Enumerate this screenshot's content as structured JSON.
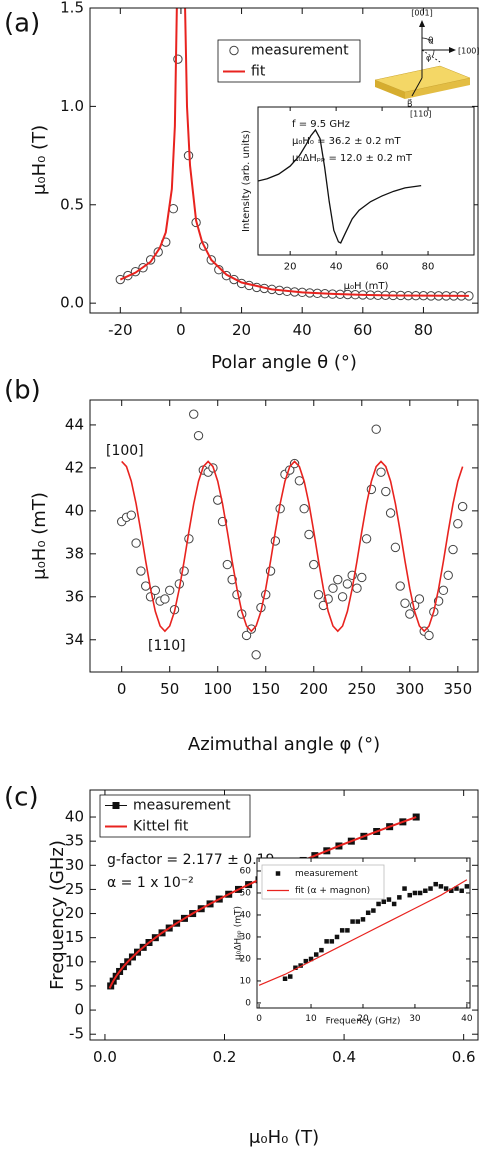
{
  "chart_data": [
    {
      "type": "scatter",
      "panel_label": "(a)",
      "x_label": "Polar angle θ (°)",
      "y_label": "μ₀H₀ (T)",
      "xlim": [
        -30,
        98
      ],
      "ylim": [
        -0.05,
        1.5
      ],
      "xticks": [
        -20,
        0,
        20,
        40,
        60,
        80
      ],
      "yticks": [
        {
          "value": 0,
          "label": "0.0"
        },
        0.5,
        {
          "value": 1,
          "label": "1.0"
        },
        1.5
      ],
      "diagram_labels": [
        "[001]",
        "θ",
        "φ",
        "[100]",
        "B⃗",
        "[110]"
      ],
      "series": [
        {
          "name": "measurement",
          "color": "#444444",
          "marker": "circle-open",
          "line": false,
          "x": [
            -20,
            -17.5,
            -15,
            -12.5,
            -10,
            -7.5,
            -5,
            -2.5,
            -1,
            2.5,
            5,
            7.5,
            10,
            12.5,
            15,
            17.5,
            20,
            22.5,
            25,
            27.5,
            30,
            32.5,
            35,
            37.5,
            40,
            42.5,
            45,
            47.5,
            50,
            52.5,
            55,
            57.5,
            60,
            62.5,
            65,
            67.5,
            70,
            72.5,
            75,
            77.5,
            80,
            82.5,
            85,
            87.5,
            90,
            92.5,
            95
          ],
          "values": [
            0.12,
            0.14,
            0.16,
            0.18,
            0.22,
            0.26,
            0.31,
            0.48,
            1.24,
            0.75,
            0.41,
            0.29,
            0.22,
            0.17,
            0.14,
            0.12,
            0.1,
            0.09,
            0.08,
            0.075,
            0.07,
            0.065,
            0.06,
            0.057,
            0.055,
            0.052,
            0.05,
            0.048,
            0.046,
            0.045,
            0.044,
            0.043,
            0.042,
            0.041,
            0.04,
            0.04,
            0.039,
            0.039,
            0.038,
            0.038,
            0.038,
            0.037,
            0.037,
            0.037,
            0.037,
            0.037,
            0.037
          ]
        },
        {
          "name": "fit",
          "color": "#e8231f",
          "marker": null,
          "line": true,
          "x": [
            -20,
            -15,
            -10,
            -7,
            -5,
            -3,
            -2,
            -1.3,
            1.3,
            2,
            3,
            5,
            7,
            10,
            15,
            20,
            30,
            40,
            50,
            60,
            70,
            80,
            95
          ],
          "values": [
            0.12,
            0.155,
            0.21,
            0.28,
            0.36,
            0.58,
            0.9,
            1.55,
            1.55,
            1.0,
            0.7,
            0.42,
            0.31,
            0.22,
            0.145,
            0.105,
            0.07,
            0.055,
            0.047,
            0.042,
            0.039,
            0.038,
            0.037
          ]
        }
      ]
    },
    {
      "type": "line",
      "x_label": "μ₀H (mT)",
      "y_label": "Intensity (arb. units)",
      "xlim": [
        6,
        100
      ],
      "ylim": [
        -1.23,
        1.35
      ],
      "xticks": [
        20,
        40,
        60,
        80
      ],
      "annotations": [
        "f = 9.5 GHz",
        "μ₀H₀ = 36.2 ± 0.2 mT",
        "μ₀ΔHₚₚ = 12.0 ± 0.2 mT"
      ],
      "series": [
        {
          "color": "#111111",
          "marker": null,
          "line": true,
          "x": [
            5,
            10,
            15,
            20,
            24,
            27,
            29,
            31,
            33,
            35,
            37,
            39,
            41,
            42,
            44,
            47,
            50,
            55,
            60,
            65,
            70,
            77
          ],
          "values": [
            0.05,
            0.1,
            0.18,
            0.32,
            0.5,
            0.7,
            0.85,
            0.95,
            0.8,
            0.3,
            -0.3,
            -0.8,
            -1.0,
            -1.02,
            -0.85,
            -0.6,
            -0.45,
            -0.3,
            -0.2,
            -0.12,
            -0.06,
            -0.02
          ]
        }
      ]
    },
    {
      "type": "scatter",
      "panel_label": "(b)",
      "x_label": "Azimuthal angle φ (°)",
      "y_label": "μ₀H₀ (mT)",
      "xlim": [
        -33,
        371
      ],
      "ylim": [
        32.5,
        45.16
      ],
      "xticks": [
        0,
        50,
        100,
        150,
        200,
        250,
        300,
        350
      ],
      "yticks": [
        34,
        36,
        38,
        40,
        42,
        44
      ],
      "annotations": [
        "[100]",
        "[110]"
      ],
      "series": [
        {
          "name": "measurement",
          "color": "#444444",
          "marker": "circle-open",
          "line": false,
          "x": [
            0,
            5,
            10,
            15,
            20,
            25,
            30,
            35,
            40,
            45,
            50,
            55,
            60,
            65,
            70,
            75,
            80,
            85,
            90,
            95,
            100,
            105,
            110,
            115,
            120,
            125,
            130,
            135,
            140,
            145,
            150,
            155,
            160,
            165,
            170,
            175,
            180,
            185,
            190,
            195,
            200,
            205,
            210,
            215,
            220,
            225,
            230,
            235,
            240,
            245,
            250,
            255,
            260,
            265,
            270,
            275,
            280,
            285,
            290,
            295,
            300,
            305,
            310,
            315,
            320,
            325,
            330,
            335,
            340,
            345,
            350,
            355
          ],
          "values": [
            39.5,
            39.7,
            39.8,
            38.5,
            37.2,
            36.5,
            36.0,
            36.3,
            35.8,
            35.9,
            36.3,
            35.4,
            36.6,
            37.2,
            38.7,
            44.5,
            43.5,
            41.9,
            41.8,
            42.0,
            40.5,
            39.5,
            37.5,
            36.8,
            36.1,
            35.2,
            34.2,
            34.5,
            33.3,
            35.5,
            36.1,
            37.2,
            38.6,
            40.1,
            41.7,
            41.9,
            42.2,
            41.4,
            40.1,
            38.9,
            37.5,
            36.1,
            35.6,
            35.9,
            36.4,
            36.8,
            36.0,
            36.6,
            37.0,
            36.4,
            36.9,
            38.7,
            41.0,
            43.8,
            41.8,
            40.9,
            39.9,
            38.3,
            36.5,
            35.7,
            35.2,
            35.6,
            35.9,
            34.4,
            34.2,
            35.3,
            35.8,
            36.3,
            37.0,
            38.2,
            39.4,
            40.2
          ]
        },
        {
          "color": "#e8231f",
          "marker": null,
          "line": true,
          "x": [
            0,
            5,
            10,
            15,
            20,
            25,
            30,
            35,
            40,
            45,
            50,
            55,
            60,
            65,
            70,
            75,
            80,
            85,
            90,
            95,
            100,
            105,
            110,
            115,
            120,
            125,
            130,
            135,
            140,
            145,
            150,
            155,
            160,
            165,
            170,
            175,
            180,
            185,
            190,
            195,
            200,
            205,
            210,
            215,
            220,
            225,
            230,
            235,
            240,
            245,
            250,
            255,
            260,
            265,
            270,
            275,
            280,
            285,
            290,
            295,
            300,
            305,
            310,
            315,
            320,
            325,
            330,
            335,
            340,
            345,
            350,
            355
          ],
          "values": [
            42.3,
            42.06,
            41.38,
            40.33,
            39.04,
            37.66,
            36.38,
            35.32,
            34.64,
            34.4,
            34.64,
            35.32,
            36.38,
            37.66,
            39.04,
            40.33,
            41.38,
            42.06,
            42.3,
            42.06,
            41.38,
            40.33,
            39.04,
            37.66,
            36.38,
            35.32,
            34.64,
            34.4,
            34.64,
            35.32,
            36.38,
            37.66,
            39.04,
            40.33,
            41.38,
            42.06,
            42.3,
            42.06,
            41.38,
            40.33,
            39.04,
            37.66,
            36.38,
            35.32,
            34.64,
            34.4,
            34.64,
            35.32,
            36.38,
            37.66,
            39.04,
            40.33,
            41.38,
            42.06,
            42.3,
            42.06,
            41.38,
            40.33,
            39.04,
            37.66,
            36.38,
            35.32,
            34.64,
            34.4,
            34.64,
            35.32,
            36.38,
            37.66,
            39.04,
            40.33,
            41.38,
            42.06
          ]
        }
      ]
    },
    {
      "type": "scatter",
      "panel_label": "(c)",
      "x_label": "μ₀H₀ (T)",
      "y_label": "Frequency (GHz)",
      "xlim": [
        -0.025,
        0.624
      ],
      "ylim": [
        -6.2,
        45.6
      ],
      "xticks": [
        {
          "value": 0,
          "label": "0.0"
        },
        0.2,
        0.4,
        0.6
      ],
      "yticks": [
        -5,
        0,
        5,
        10,
        15,
        20,
        25,
        30,
        35,
        40
      ],
      "annotations": [
        "g-factor = 2.177 ± 0.19",
        "α = 1 x 10⁻²"
      ],
      "series": [
        {
          "name": "measurement",
          "color": "#111111",
          "marker": "square",
          "line": true,
          "x": [
            0.0096,
            0.0138,
            0.0188,
            0.0245,
            0.0309,
            0.0381,
            0.046,
            0.0545,
            0.064,
            0.0737,
            0.0843,
            0.0955,
            0.1075,
            0.1199,
            0.133,
            0.1467,
            0.161,
            0.1758,
            0.1912,
            0.207,
            0.2234,
            0.2403,
            0.2577,
            0.2755,
            0.2938,
            0.3125,
            0.3316,
            0.3511,
            0.3711,
            0.3914,
            0.4121,
            0.4331,
            0.4545,
            0.4762,
            0.4983,
            0.5206
          ],
          "values": [
            5,
            6,
            7,
            8,
            9,
            10,
            11,
            12,
            13,
            14,
            15,
            16,
            17,
            18,
            19,
            20,
            21,
            22,
            23,
            24,
            25,
            26,
            27,
            28,
            29,
            30,
            31,
            32,
            33,
            34,
            35,
            36,
            37,
            38,
            39,
            40
          ]
        },
        {
          "name": "Kittel fit",
          "color": "#e8231f",
          "marker": null,
          "line": true,
          "x": [
            0.0078,
            0.0096,
            0.0138,
            0.0188,
            0.0245,
            0.0309,
            0.0381,
            0.0545,
            0.0737,
            0.0955,
            0.1199,
            0.1467,
            0.1758,
            0.207,
            0.2403,
            0.2755,
            0.3125,
            0.3511,
            0.3914,
            0.4331,
            0.4762,
            0.5206
          ],
          "values": [
            4.5,
            5,
            6,
            7,
            8,
            9,
            10,
            12,
            14,
            16,
            18,
            20,
            22,
            24,
            26,
            28,
            30,
            32,
            34,
            36,
            38,
            40
          ]
        }
      ]
    },
    {
      "type": "scatter",
      "x_label": "Frequency (GHz)",
      "y_label": "μ₀ΔHₚₚ (mT)",
      "xlim": [
        -0.4,
        40.6
      ],
      "ylim": [
        -2.3,
        65.9
      ],
      "xticks": [
        0,
        10,
        20,
        30,
        40
      ],
      "yticks": [
        0,
        10,
        20,
        30,
        40,
        50,
        60
      ],
      "series": [
        {
          "name": "measurement",
          "color": "#111111",
          "marker": "square",
          "line": false,
          "x": [
            5,
            6,
            7,
            8,
            9,
            10,
            11,
            12,
            13,
            14,
            15,
            16,
            17,
            18,
            19,
            20,
            21,
            22,
            23,
            24,
            25,
            26,
            27,
            28,
            29,
            30,
            31,
            32,
            33,
            34,
            35,
            36,
            37,
            38,
            39,
            40
          ],
          "values": [
            11,
            12,
            16,
            17,
            19,
            20,
            22,
            24,
            28,
            28,
            30,
            33,
            33,
            37,
            37,
            38,
            41,
            42,
            45,
            46,
            47,
            45,
            48,
            52,
            49,
            50,
            50,
            51,
            52,
            54,
            53,
            52,
            51,
            52,
            51,
            53
          ]
        },
        {
          "name": "fit (α + magnon)",
          "color": "#e8231f",
          "marker": null,
          "line": true,
          "x": [
            0,
            5,
            10,
            15,
            20,
            25,
            30,
            35,
            40
          ],
          "values": [
            8,
            13,
            19,
            25,
            31,
            37,
            43,
            49,
            56
          ]
        }
      ]
    }
  ]
}
